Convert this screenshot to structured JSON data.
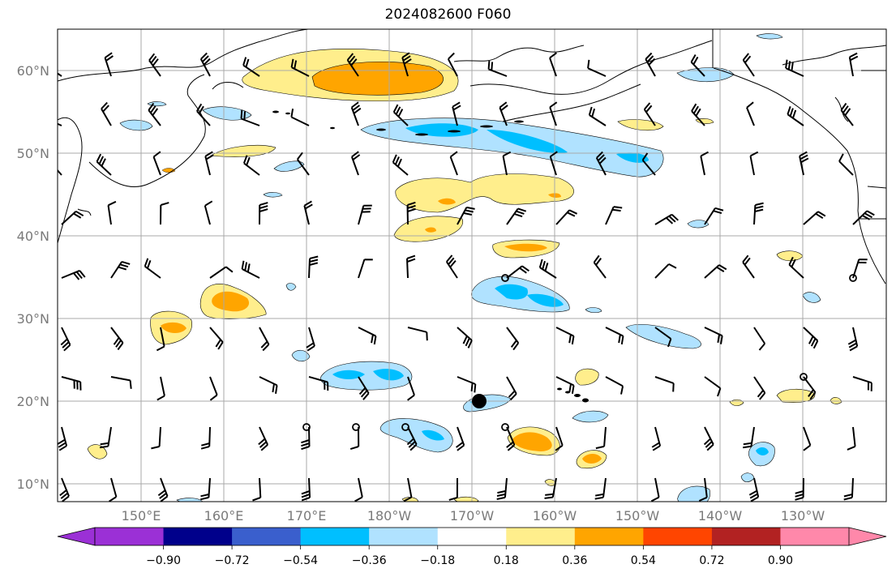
{
  "title": "2024082600 F060",
  "lat_labels": [
    "60°N",
    "50°N",
    "40°N",
    "30°N",
    "20°N",
    "10°N"
  ],
  "lon_labels": [
    "150°E",
    "160°E",
    "170°E",
    "180°W",
    "170°W",
    "160°W",
    "150°W",
    "140°W",
    "130°W"
  ],
  "colorbar": {
    "ticks": [
      "−0.90",
      "−0.72",
      "−0.54",
      "−0.36",
      "−0.18",
      "0.18",
      "0.36",
      "0.54",
      "0.72",
      "0.90"
    ],
    "colors": [
      "#9b30d6",
      "#00008b",
      "#3a5fcd",
      "#00bfff",
      "#b0e2ff",
      "#ffffff",
      "#ffee8c",
      "#ffa500",
      "#ff4500",
      "#b22222",
      "#ff88aa"
    ]
  },
  "legend_colors": {
    "light_blue": "#b0e2ff",
    "mid_blue": "#00bfff",
    "light_yellow": "#ffee8c",
    "orange": "#ffa500"
  }
}
